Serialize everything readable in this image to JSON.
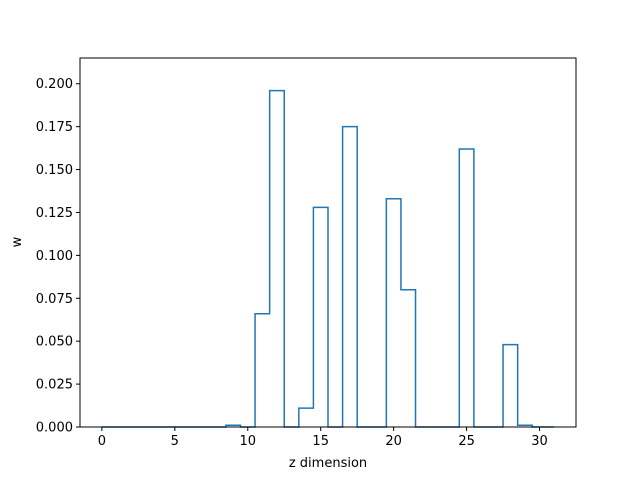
{
  "chart_data": {
    "type": "step",
    "title": "",
    "xlabel": "z dimension",
    "ylabel": "w",
    "xlim": [
      -1.5,
      32.5
    ],
    "ylim": [
      0,
      0.215
    ],
    "grid": false,
    "legend": "none",
    "colors": {
      "series": "#1f77b4"
    },
    "x_ticks": [
      0,
      5,
      10,
      15,
      20,
      25,
      30
    ],
    "x_tick_labels": [
      "0",
      "5",
      "10",
      "15",
      "20",
      "25",
      "30"
    ],
    "y_ticks": [
      0,
      0.025,
      0.05,
      0.075,
      0.1,
      0.125,
      0.15,
      0.175,
      0.2
    ],
    "y_tick_labels": [
      "0.000",
      "0.025",
      "0.050",
      "0.075",
      "0.100",
      "0.125",
      "0.150",
      "0.175",
      "0.200"
    ],
    "series": [
      {
        "x": [
          0,
          1,
          2,
          3,
          4,
          5,
          6,
          7,
          8,
          9,
          10,
          11,
          12,
          13,
          14,
          15,
          16,
          17,
          18,
          19,
          20,
          21,
          22,
          23,
          24,
          25,
          26,
          27,
          28,
          29,
          30,
          31
        ],
        "values": [
          0,
          0,
          0,
          0,
          0,
          0,
          0,
          0,
          0,
          0.001,
          0,
          0.066,
          0.196,
          0,
          0.011,
          0.128,
          0,
          0.175,
          0,
          0,
          0.133,
          0.08,
          0,
          0,
          0,
          0.162,
          0,
          0,
          0.048,
          0.001,
          0,
          0
        ]
      }
    ]
  }
}
